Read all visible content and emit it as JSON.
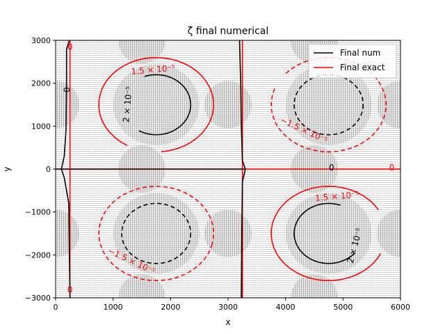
{
  "chart_data": {
    "type": "contour",
    "title": "ζ final numerical",
    "xlabel": "x",
    "ylabel": "y",
    "xlim": [
      0,
      6000
    ],
    "ylim": [
      -3000,
      3000
    ],
    "xticks": [
      0,
      1000,
      2000,
      3000,
      4000,
      5000,
      6000
    ],
    "yticks": [
      -3000,
      -2000,
      -1000,
      0,
      1000,
      2000,
      3000
    ],
    "xtick_labels": [
      "0",
      "1000",
      "2000",
      "3000",
      "4000",
      "5000",
      "6000"
    ],
    "ytick_labels": [
      "−3000",
      "−2000",
      "−1000",
      "0",
      "1000",
      "2000",
      "3000"
    ],
    "legend_position": "top-right",
    "series": [
      {
        "name": "Final num",
        "color": "#000000"
      },
      {
        "name": "Final exact",
        "color": "#ff0000"
      }
    ],
    "background_field": "dense grayscale quiver field",
    "contours": {
      "numerical": {
        "color": "#000000",
        "vortex_centers": [
          [
            1750,
            1500
          ],
          [
            4750,
            1500
          ],
          [
            1750,
            -1500
          ],
          [
            4750,
            -1500
          ]
        ],
        "levels": [
          {
            "id": "pos",
            "value": "2e-5",
            "label": "2 × 10⁻⁵",
            "dashed": false
          },
          {
            "id": "neg",
            "value": "-2e-5",
            "label": "",
            "dashed": true
          },
          {
            "id": "zero",
            "value": "0",
            "label": "0",
            "dashed": false
          }
        ]
      },
      "exact": {
        "color": "#ff0000",
        "levels": [
          {
            "id": "pos",
            "value": "1.5e-5",
            "label": "1.5 × 10⁻⁵",
            "dashed": false
          },
          {
            "id": "neg",
            "value": "-1.5e-5",
            "label": "−1.5 × 10⁻⁵",
            "dashed": true
          },
          {
            "id": "zero",
            "value": "0",
            "label": "0",
            "dashed": false
          }
        ]
      }
    },
    "inline_labels": {
      "black_2e5": "2 × 10⁻⁵",
      "black_zero": "0",
      "red_1_5e5": "1.5 × 10⁻⁵",
      "red_neg_1_5e5": "−1.5 × 10⁻⁵",
      "red_zero": "0"
    }
  }
}
